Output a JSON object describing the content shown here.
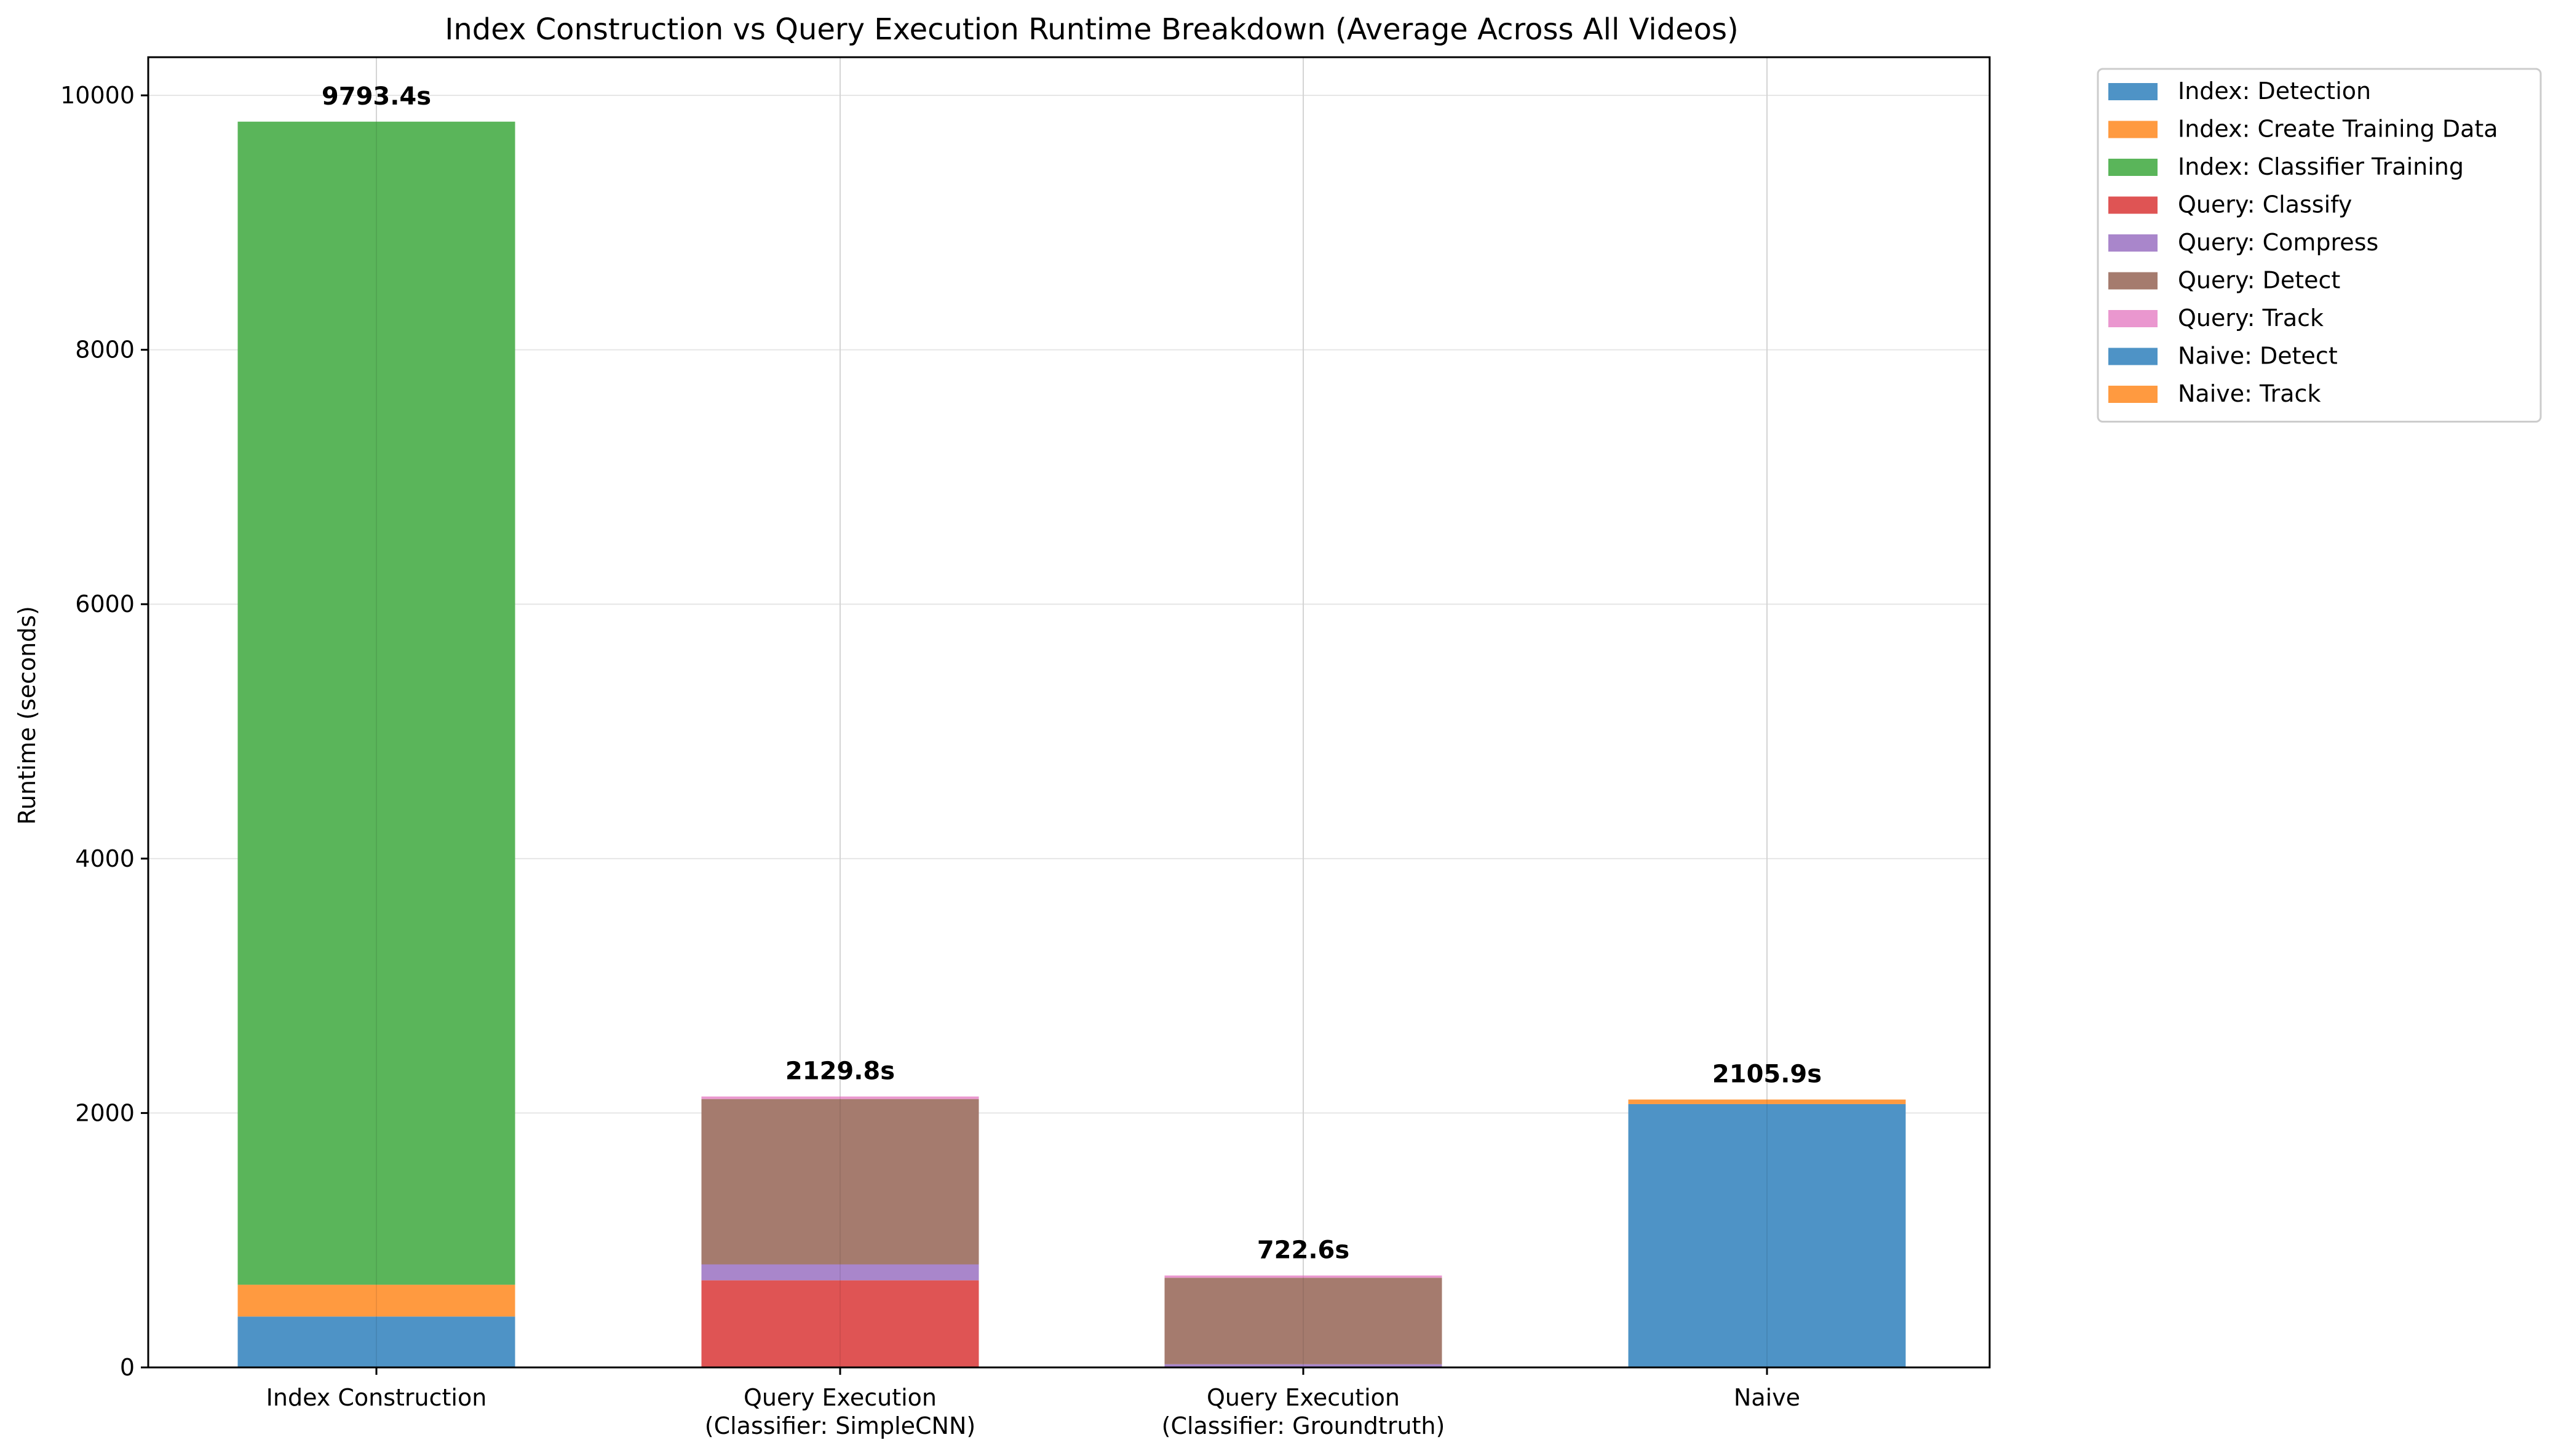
{
  "chart_data": {
    "type": "bar",
    "stacked": true,
    "title": "Index Construction vs Query Execution Runtime Breakdown (Average Across All Videos)",
    "xlabel": "",
    "ylabel": "Runtime (seconds)",
    "ylim": [
      0,
      10300
    ],
    "yticks": [
      0,
      2000,
      4000,
      6000,
      8000,
      10000
    ],
    "grid": true,
    "legend_position": "outside-top-right",
    "categories": [
      [
        "Index Construction"
      ],
      [
        "Query Execution",
        "(Classifier: SimpleCNN)"
      ],
      [
        "Query Execution",
        "(Classifier: Groundtruth)"
      ],
      [
        "Naive"
      ]
    ],
    "totals": [
      "9793.4s",
      "2129.8s",
      "722.6s",
      "2105.9s"
    ],
    "total_values": [
      9793.4,
      2129.8,
      722.6,
      2105.9
    ],
    "series": [
      {
        "name": "Index: Detection",
        "color": "#4e93c6",
        "values": [
          400,
          0,
          0,
          0
        ]
      },
      {
        "name": "Index: Create Training Data",
        "color": "#ff9a40",
        "values": [
          250,
          0,
          0,
          0
        ]
      },
      {
        "name": "Index: Classifier Training",
        "color": "#5ab55a",
        "values": [
          9143.4,
          0,
          0,
          0
        ]
      },
      {
        "name": "Query: Classify",
        "color": "#df5454",
        "values": [
          0,
          685,
          0,
          0
        ]
      },
      {
        "name": "Query: Compress",
        "color": "#a986cb",
        "values": [
          0,
          125,
          25,
          0
        ]
      },
      {
        "name": "Query: Detect",
        "color": "#a57b6e",
        "values": [
          0,
          1300,
          680,
          0
        ]
      },
      {
        "name": "Query: Track",
        "color": "#ea97cf",
        "values": [
          0,
          19.8,
          17.6,
          0
        ]
      },
      {
        "name": "Naive: Detect",
        "color": "#4e93c6",
        "values": [
          0,
          0,
          0,
          2070
        ]
      },
      {
        "name": "Naive: Track",
        "color": "#ff9a40",
        "values": [
          0,
          0,
          0,
          35.9
        ]
      }
    ]
  }
}
